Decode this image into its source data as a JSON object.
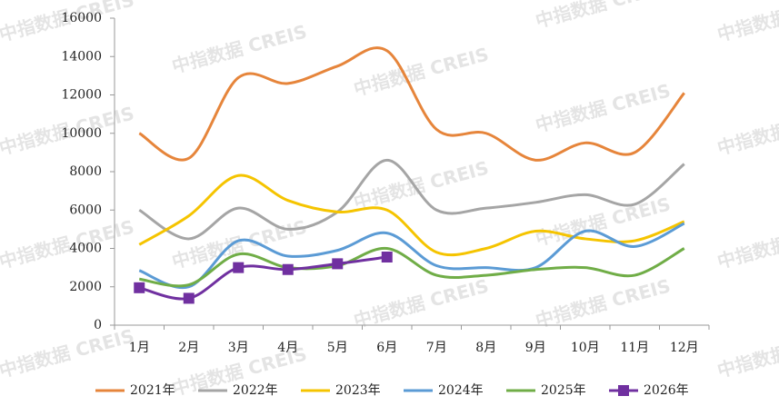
{
  "chart_data": {
    "type": "line",
    "watermark": "中指数据 CREIS",
    "categories": [
      "1月",
      "2月",
      "3月",
      "4月",
      "5月",
      "6月",
      "7月",
      "8月",
      "9月",
      "10月",
      "11月",
      "12月"
    ],
    "series": [
      {
        "name": "2021年",
        "color": "#e6853b",
        "values": [
          10000,
          8700,
          12900,
          12600,
          13500,
          14300,
          10200,
          10000,
          8600,
          9500,
          9000,
          12100
        ]
      },
      {
        "name": "2022年",
        "color": "#a5a5a5",
        "values": [
          6000,
          4500,
          6100,
          5000,
          5900,
          8600,
          6000,
          6100,
          6400,
          6800,
          6300,
          8400
        ]
      },
      {
        "name": "2023年",
        "color": "#f5c400",
        "values": [
          4200,
          5700,
          7800,
          6500,
          5900,
          6000,
          3800,
          4000,
          4900,
          4500,
          4400,
          5400
        ]
      },
      {
        "name": "2024年",
        "color": "#5b9bd5",
        "values": [
          2850,
          2000,
          4400,
          3600,
          3900,
          4800,
          3100,
          3000,
          3000,
          4900,
          4100,
          5300
        ]
      },
      {
        "name": "2025年",
        "color": "#70ad47",
        "values": [
          2400,
          2100,
          3700,
          3000,
          3100,
          4000,
          2600,
          2600,
          2900,
          3000,
          2600,
          4000
        ]
      },
      {
        "name": "2026年",
        "color": "#7030a0",
        "marker": "square",
        "values": [
          1950,
          1400,
          3000,
          2900,
          3200,
          3550,
          null,
          null,
          null,
          null,
          null,
          null
        ]
      }
    ],
    "ylim": [
      0,
      16000
    ],
    "yticks": [
      0,
      2000,
      4000,
      6000,
      8000,
      10000,
      12000,
      14000,
      16000
    ],
    "legend": "bottom"
  }
}
